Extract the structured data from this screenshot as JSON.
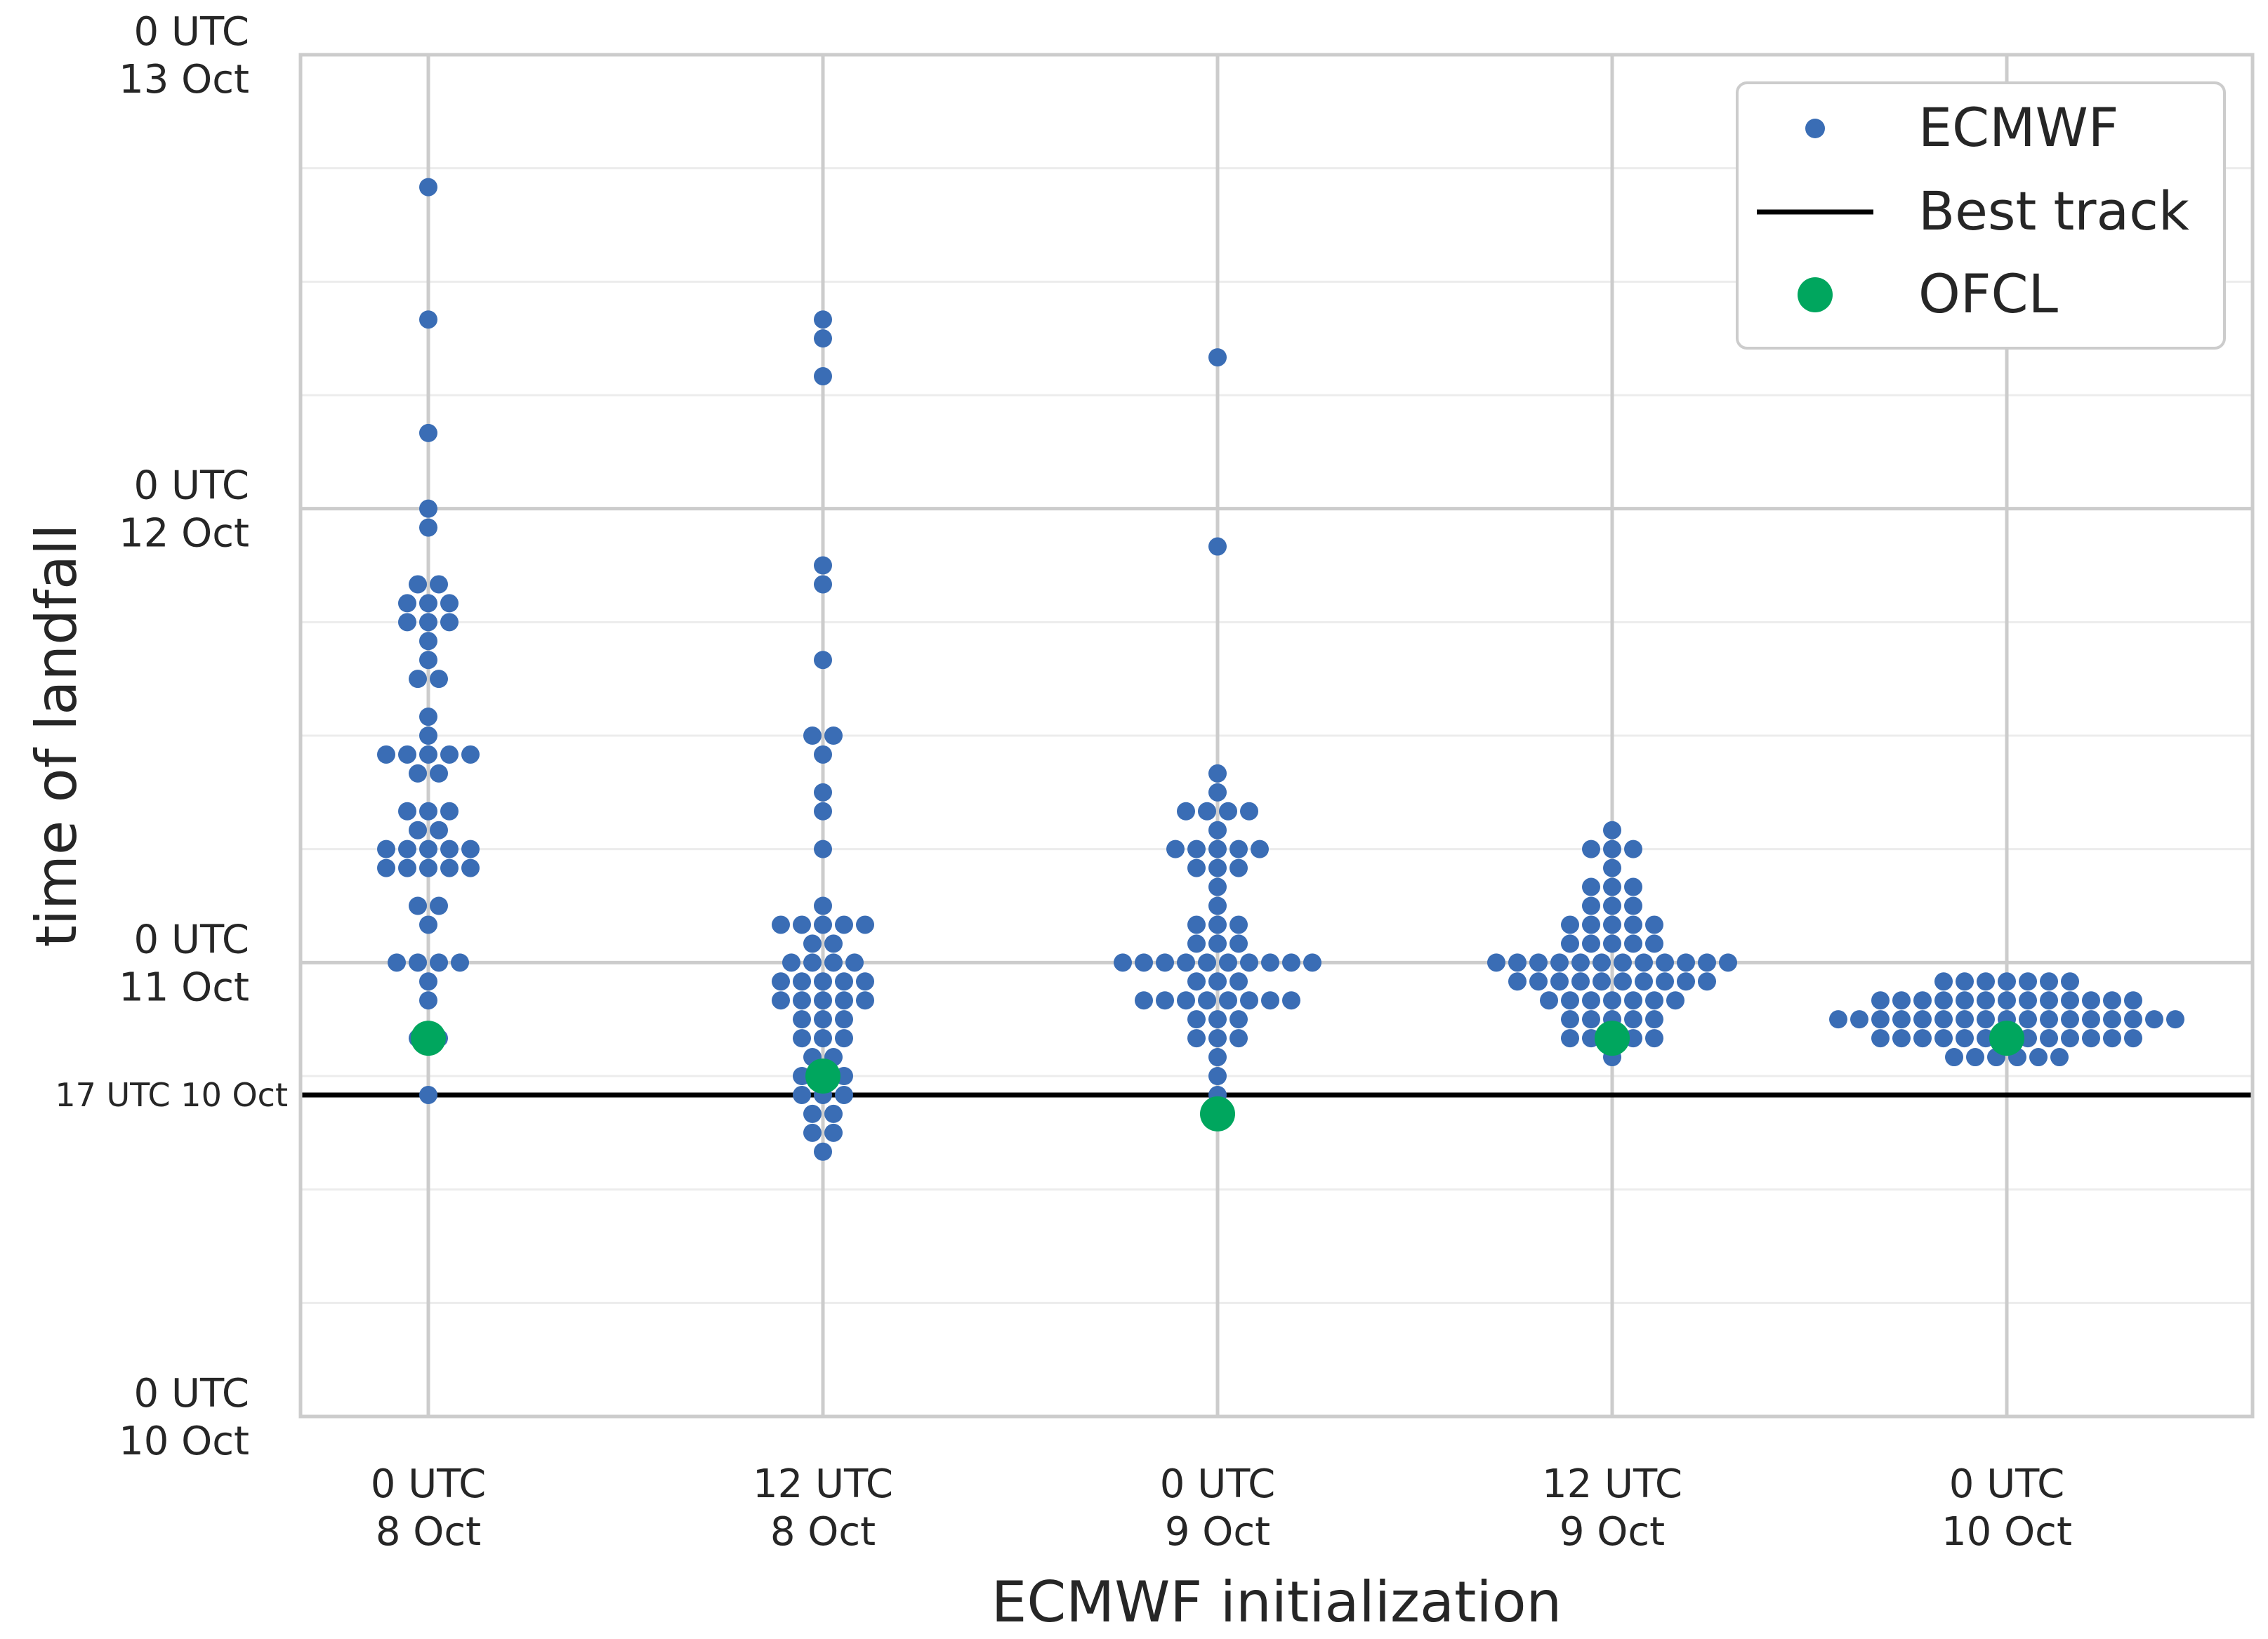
{
  "chart_data": {
    "type": "scatter",
    "style": "swarm",
    "xlabel": "ECMWF initialization",
    "ylabel": "time of landfall",
    "categories": [
      [
        "0 UTC",
        "8 Oct"
      ],
      [
        "12 UTC",
        "8 Oct"
      ],
      [
        "0 UTC",
        "9 Oct"
      ],
      [
        "12 UTC",
        "9 Oct"
      ],
      [
        "0 UTC",
        "10 Oct"
      ]
    ],
    "y_unit": "hours after 0 UTC 10 Oct",
    "ylim": [
      0,
      72
    ],
    "y_ticks": [
      {
        "value": 0,
        "lines": [
          "0 UTC",
          "10 Oct"
        ]
      },
      {
        "value": 24,
        "lines": [
          "0 UTC",
          "11 Oct"
        ]
      },
      {
        "value": 48,
        "lines": [
          "0 UTC",
          "12 Oct"
        ]
      },
      {
        "value": 72,
        "lines": [
          "0 UTC",
          "13 Oct"
        ]
      }
    ],
    "y_minor_step": 6,
    "grid": true,
    "reference_line": {
      "value": 17,
      "label": "17 UTC 10 Oct",
      "name": "Best track",
      "color": "#000000"
    },
    "legend": {
      "position": "top-right",
      "entries": [
        {
          "label": "ECMWF",
          "marker": "dot",
          "color": "#3a6db5"
        },
        {
          "label": "Best track",
          "marker": "line",
          "color": "#000000"
        },
        {
          "label": "OFCL",
          "marker": "large-dot",
          "color": "#00a65e"
        }
      ]
    },
    "series": [
      {
        "name": "ECMWF",
        "color": "#3a6db5",
        "points": [
          [
            65,
            1
          ],
          [
            58,
            1
          ],
          [
            52,
            1
          ],
          [
            48,
            1
          ],
          [
            47,
            1
          ],
          [
            44,
            2
          ],
          [
            43,
            3
          ],
          [
            42,
            3
          ],
          [
            41,
            1
          ],
          [
            40,
            1
          ],
          [
            39,
            2
          ],
          [
            37,
            1
          ],
          [
            36,
            1
          ],
          [
            35,
            5
          ],
          [
            34,
            2
          ],
          [
            32,
            3
          ],
          [
            31,
            2
          ],
          [
            30,
            5
          ],
          [
            29,
            5
          ],
          [
            27,
            2
          ],
          [
            26,
            1
          ],
          [
            24,
            4
          ],
          [
            23,
            1
          ],
          [
            22,
            1
          ],
          [
            20,
            2
          ],
          [
            17,
            1
          ],
          [
            58,
            1
          ],
          [
            57,
            1
          ],
          [
            55,
            1
          ],
          [
            45,
            1
          ],
          [
            44,
            1
          ],
          [
            40,
            1
          ],
          [
            36,
            2
          ],
          [
            35,
            1
          ],
          [
            33,
            1
          ],
          [
            32,
            1
          ],
          [
            30,
            1
          ],
          [
            27,
            1
          ],
          [
            26,
            5
          ],
          [
            25,
            2
          ],
          [
            24,
            4
          ],
          [
            23,
            5
          ],
          [
            22,
            5
          ],
          [
            21,
            3
          ],
          [
            20,
            3
          ],
          [
            19,
            2
          ],
          [
            18,
            3
          ],
          [
            17,
            3
          ],
          [
            16,
            2
          ],
          [
            15,
            2
          ],
          [
            14,
            1
          ],
          [
            56,
            1
          ],
          [
            46,
            1
          ],
          [
            34,
            1
          ],
          [
            33,
            1
          ],
          [
            32,
            4
          ],
          [
            31,
            1
          ],
          [
            30,
            5
          ],
          [
            29,
            3
          ],
          [
            28,
            1
          ],
          [
            27,
            1
          ],
          [
            26,
            3
          ],
          [
            25,
            3
          ],
          [
            24,
            10
          ],
          [
            23,
            3
          ],
          [
            22,
            8
          ],
          [
            21,
            3
          ],
          [
            20,
            3
          ],
          [
            19,
            1
          ],
          [
            18,
            1
          ],
          [
            17,
            1
          ],
          [
            16,
            1
          ],
          [
            31,
            1
          ],
          [
            30,
            3
          ],
          [
            29,
            1
          ],
          [
            28,
            3
          ],
          [
            27,
            3
          ],
          [
            26,
            5
          ],
          [
            25,
            5
          ],
          [
            24,
            12
          ],
          [
            23,
            10
          ],
          [
            22,
            7
          ],
          [
            21,
            5
          ],
          [
            20,
            5
          ],
          [
            19,
            1
          ],
          [
            23,
            7
          ],
          [
            22,
            13
          ],
          [
            21,
            17
          ],
          [
            20,
            13
          ],
          [
            19,
            6
          ]
        ]
      },
      {
        "name": "OFCL",
        "color": "#00a65e",
        "points": [
          [
            0,
            20
          ],
          [
            1,
            18
          ],
          [
            2,
            16
          ],
          [
            3,
            20
          ],
          [
            4,
            20
          ]
        ]
      }
    ]
  }
}
